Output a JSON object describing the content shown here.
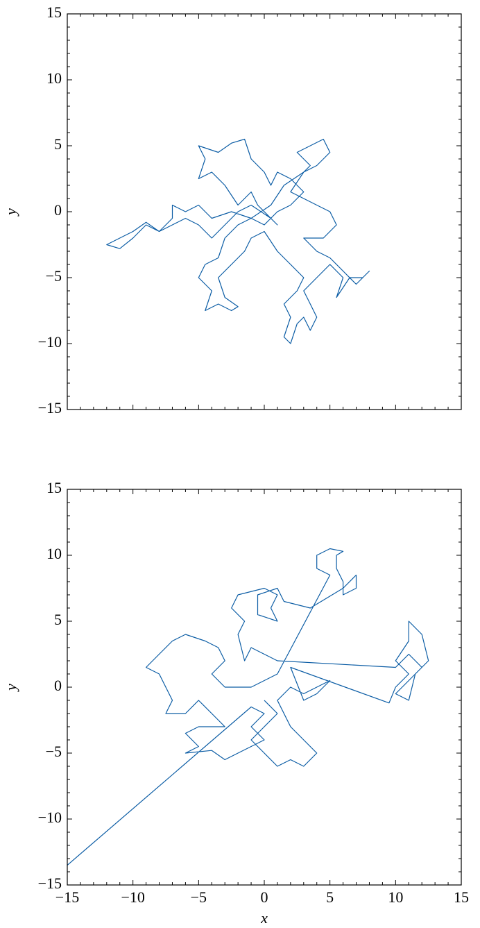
{
  "chart_data": [
    {
      "type": "line",
      "ylabel": "y",
      "color": "#0C5DA5",
      "xlim": [
        -15,
        15
      ],
      "ylim": [
        -15,
        15
      ],
      "xticks": [
        {
          "value": -15,
          "label": "−15"
        },
        {
          "value": -10,
          "label": "−10"
        },
        {
          "value": -5,
          "label": "−5"
        },
        0,
        5,
        10,
        15
      ],
      "yticks": [
        {
          "value": -15,
          "label": "−15"
        },
        {
          "value": -10,
          "label": "−10"
        },
        {
          "value": -5,
          "label": "−5"
        },
        0,
        5,
        10,
        15
      ],
      "xticklabels": false,
      "xminorticks": [
        -14,
        -13,
        -12,
        -11,
        -9,
        -8,
        -7,
        -6,
        -4,
        -3,
        -2,
        -1,
        1,
        2,
        3,
        4,
        6,
        7,
        8,
        9,
        11,
        12,
        13,
        14
      ],
      "yminorticks": [
        -14,
        -13,
        -12,
        -11,
        -9,
        -8,
        -7,
        -6,
        -4,
        -3,
        -2,
        -1,
        1,
        2,
        3,
        4,
        6,
        7,
        8,
        9,
        11,
        12,
        13,
        14
      ],
      "x": [
        0,
        1,
        -0.5,
        -1,
        -2,
        -3,
        -4,
        -5,
        -4.5,
        -5,
        -3.5,
        -2.5,
        -1.5,
        -1,
        0,
        0.5,
        1,
        2,
        3,
        2,
        1,
        0,
        -1,
        -2,
        -3,
        -3.5,
        -4.5,
        -5,
        -4,
        -4.5,
        -3.5,
        -2.5,
        -2,
        -3,
        -3.5,
        -2.5,
        -1.5,
        -1,
        0,
        1,
        2,
        3,
        2.5,
        1.5,
        2,
        1.5,
        2,
        2.5,
        3,
        3.5,
        4,
        3.5,
        3,
        4,
        5,
        6,
        5.5,
        6.5,
        7.5,
        8,
        7,
        6,
        5,
        4,
        3,
        4.5,
        5.5,
        5,
        4,
        3,
        2,
        3,
        3.5,
        2.5,
        3.5,
        4.5,
        5,
        4,
        3,
        1.5,
        0.5,
        -1,
        -2.5,
        -4,
        -5,
        -6,
        -7,
        -7,
        -8,
        -9,
        -10,
        -11,
        -12,
        -11,
        -10,
        -9,
        -8,
        -7,
        -6,
        -5,
        -4,
        -3,
        -2,
        -1,
        0.5
      ],
      "values": [
        0,
        -1,
        0.5,
        1.5,
        0.5,
        2,
        3,
        2.5,
        4,
        5,
        4.5,
        5.2,
        5.5,
        4,
        3,
        2,
        3,
        2.5,
        1.5,
        0.5,
        0,
        -1,
        -0.5,
        -1,
        -2,
        -3.5,
        -4,
        -5,
        -6,
        -7.5,
        -7,
        -7.5,
        -7.2,
        -6.5,
        -5,
        -4,
        -3,
        -2,
        -1.5,
        -3,
        -4,
        -5,
        -6,
        -7,
        -8,
        -9.5,
        -10,
        -8.5,
        -8,
        -9,
        -8,
        -7,
        -6,
        -5,
        -4,
        -5,
        -6.5,
        -5,
        -5,
        -4.5,
        -5.5,
        -4.5,
        -3.5,
        -3,
        -2,
        -2,
        -1,
        0,
        0.5,
        1,
        1.5,
        3,
        3.5,
        4.5,
        5,
        5.5,
        4.5,
        3.5,
        3,
        2,
        0.5,
        -0.5,
        0,
        -0.5,
        0.5,
        0,
        0.5,
        -0.5,
        -1.5,
        -0.8,
        -1.5,
        -2,
        -2.5,
        -2.8,
        -2,
        -1,
        -1.5,
        -1,
        -0.5,
        -1,
        -2,
        -1,
        0,
        0.5,
        -0.5
      ]
    },
    {
      "type": "line",
      "xlabel": "x",
      "ylabel": "y",
      "color": "#0C5DA5",
      "xlim": [
        -15,
        15
      ],
      "ylim": [
        -15,
        15
      ],
      "xticks": [
        {
          "value": -15,
          "label": "−15"
        },
        {
          "value": -10,
          "label": "−10"
        },
        {
          "value": -5,
          "label": "−5"
        },
        0,
        5,
        10,
        15
      ],
      "yticks": [
        {
          "value": -15,
          "label": "−15"
        },
        {
          "value": -10,
          "label": "−10"
        },
        {
          "value": -5,
          "label": "−5"
        },
        0,
        5,
        10,
        15
      ],
      "xticklabels": true,
      "xminorticks": [
        -14,
        -13,
        -12,
        -11,
        -9,
        -8,
        -7,
        -6,
        -4,
        -3,
        -2,
        -1,
        1,
        2,
        3,
        4,
        6,
        7,
        8,
        9,
        11,
        12,
        13,
        14
      ],
      "yminorticks": [
        -14,
        -13,
        -12,
        -11,
        -9,
        -8,
        -7,
        -6,
        -4,
        -3,
        -2,
        -1,
        1,
        2,
        3,
        4,
        6,
        7,
        8,
        9,
        11,
        12,
        13,
        14
      ],
      "x": [
        0,
        1,
        0,
        -1,
        0,
        1,
        2,
        3,
        4,
        3,
        2,
        1,
        2,
        3,
        4,
        5,
        4,
        3,
        2,
        9.5,
        10,
        11,
        10,
        11,
        11,
        12,
        12.5,
        11.5,
        11,
        10,
        11,
        12,
        11,
        10,
        1,
        0,
        -1,
        -1.5,
        -2,
        -1.5,
        -2.5,
        -2,
        0,
        1,
        0.5,
        1,
        -0.5,
        -0.5,
        1,
        1.5,
        3.5,
        6,
        7,
        7,
        6,
        6,
        5.5,
        5.5,
        6,
        5,
        4,
        4,
        5,
        1,
        -1,
        -3,
        -4,
        -3,
        -3.5,
        -4.5,
        -6,
        -7,
        -8,
        -9,
        -8,
        -7.5,
        -7,
        -7.5,
        -6,
        -5,
        -4,
        -3,
        -5,
        -6,
        -5,
        -6,
        -4,
        -3,
        -2,
        -1,
        0,
        -1,
        0,
        -1,
        -15
      ],
      "values": [
        -1,
        -2,
        -3,
        -4,
        -5,
        -6,
        -5.5,
        -6,
        -5,
        -4,
        -3,
        -1,
        0,
        -0.5,
        0,
        0.5,
        -0.5,
        -1,
        1.5,
        -1.2,
        0,
        1,
        2,
        3.5,
        5,
        4,
        2,
        1,
        -1,
        -0.5,
        0.5,
        1.5,
        2.5,
        1.5,
        2,
        2.5,
        3,
        2,
        4,
        5,
        6,
        7,
        7.5,
        7,
        6,
        5,
        5.5,
        7,
        7.5,
        6.5,
        6,
        7.5,
        8.5,
        7.5,
        7,
        8,
        9,
        10,
        10.3,
        10.5,
        10,
        9,
        8.5,
        1,
        0,
        0,
        1,
        2,
        3,
        3.5,
        4,
        3.5,
        2.5,
        1.5,
        1,
        0,
        -1,
        -2,
        -2,
        -1,
        -2,
        -3,
        -3,
        -3.5,
        -4.5,
        -5,
        -4.8,
        -5.5,
        -5,
        -4.5,
        -4,
        -3,
        -2,
        -1.5,
        -13.5
      ]
    }
  ]
}
